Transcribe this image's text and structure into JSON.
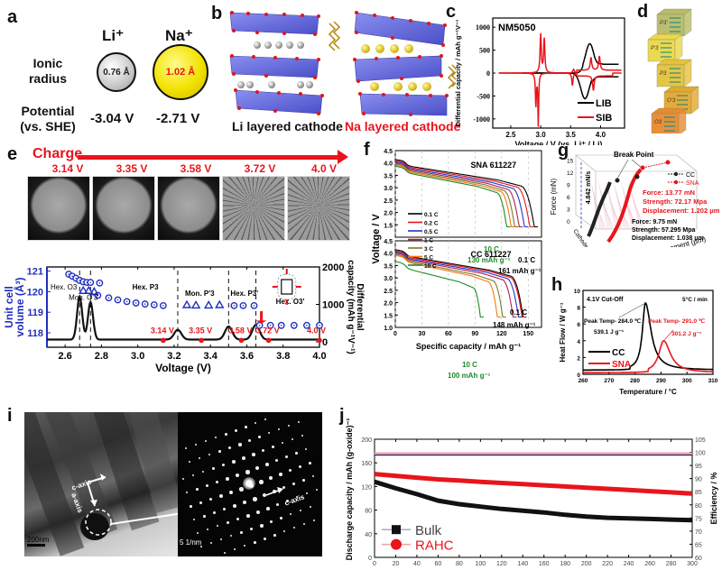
{
  "figure": {
    "panels": [
      "a",
      "b",
      "c",
      "d",
      "e",
      "f",
      "g",
      "h",
      "i",
      "j"
    ]
  },
  "panel_a": {
    "label": "a",
    "ions": [
      {
        "name": "Li⁺",
        "radius": "0.76 Å",
        "potential": "-3.04 V",
        "color": "#cfcfcf"
      },
      {
        "name": "Na⁺",
        "radius": "1.02 Å",
        "potential": "-2.71 V",
        "color": "#f3e300"
      }
    ],
    "row_labels": {
      "radius": [
        "Ionic",
        "radius"
      ],
      "potential": [
        "Potential",
        "(vs. SHE)"
      ]
    }
  },
  "panel_b": {
    "label": "b",
    "li_caption": "Li layered cathode",
    "na_caption": "Na layered cathode"
  },
  "panel_d": {
    "label": "d",
    "phases": [
      "P3'",
      "P'3",
      "P3",
      "O'3",
      "O3"
    ]
  },
  "panel_e": {
    "label": "e",
    "charge_label": "Charge",
    "sem_voltages": [
      "3.14 V",
      "3.35 V",
      "3.58 V",
      "3.72 V",
      "4.0 V"
    ],
    "phase_labels": [
      "Hex. O3",
      "Mon. O'3",
      "Hex. P3",
      "Mon. P'3",
      "Hex. P3'",
      "Hex. O3'"
    ]
  },
  "panel_i": {
    "label": "i",
    "c_axis_label": "c-axis",
    "a_axis_label": "a-axis",
    "scale_left": "200nm",
    "scale_right": "5 1/nm",
    "c_axis_label_right": "c-axis"
  },
  "chart_data": [
    {
      "id": "c",
      "type": "line",
      "title": "NM5050",
      "xlabel": "Voltage / V (vs. Li⁺ / Li)",
      "ylabel": "Differential capacity / mAh g⁻¹V⁻¹",
      "xlim": [
        2.2,
        4.4
      ],
      "ylim": [
        -1200,
        1200
      ],
      "xticks": [
        2.5,
        3.0,
        3.5,
        4.0
      ],
      "yticks": [
        -1000,
        -500,
        0,
        500,
        1000
      ],
      "legend": [
        "LIB",
        "SIB"
      ],
      "legend_position": "bottom-right",
      "series": [
        {
          "name": "LIB",
          "color": "#000000",
          "peaks": [
            {
              "x": 3.82,
              "y": 600
            },
            {
              "x": 3.74,
              "y": -560
            }
          ]
        },
        {
          "name": "SIB",
          "color": "#e8151b",
          "peaks": [
            {
              "x": 3.0,
              "y": 840
            },
            {
              "x": 3.06,
              "y": 740
            },
            {
              "x": 2.92,
              "y": -700
            },
            {
              "x": 2.96,
              "y": -1130
            },
            {
              "x": 3.55,
              "y": 80
            },
            {
              "x": 3.53,
              "y": -270
            },
            {
              "x": 3.84,
              "y": 280
            },
            {
              "x": 3.98,
              "y": 310
            },
            {
              "x": 3.88,
              "y": -320
            }
          ]
        }
      ]
    },
    {
      "id": "e",
      "type": "line",
      "xlabel": "Voltage (V)",
      "ylabel_left": "Unit cell volume (Å³)",
      "ylabel_right": "Differential capacity (mAh g⁻¹V⁻¹)",
      "xlim": [
        2.5,
        4.0
      ],
      "ylim_left": [
        117.3,
        121.2
      ],
      "ylim_right": [
        0,
        2000
      ],
      "xticks": [
        2.6,
        2.8,
        3.0,
        3.2,
        3.4,
        3.6,
        3.8,
        4.0
      ],
      "yticks_left": [
        118,
        119,
        120,
        121
      ],
      "yticks_right": [
        0,
        1000,
        2000
      ],
      "phase_boundaries": [
        2.68,
        2.74,
        3.22,
        3.5,
        3.65
      ],
      "volume_points": [
        {
          "x": 2.62,
          "y": 120.85
        },
        {
          "x": 2.64,
          "y": 120.75
        },
        {
          "x": 2.66,
          "y": 120.65
        },
        {
          "x": 2.68,
          "y": 120.55
        },
        {
          "x": 2.7,
          "y": 120.48
        },
        {
          "x": 2.72,
          "y": 120.45
        },
        {
          "x": 2.74,
          "y": 120.45
        },
        {
          "x": 2.79,
          "y": 120.42
        },
        {
          "x": 2.78,
          "y": 119.82
        },
        {
          "x": 2.84,
          "y": 119.7
        },
        {
          "x": 2.89,
          "y": 119.6
        },
        {
          "x": 2.94,
          "y": 119.52
        },
        {
          "x": 2.99,
          "y": 119.45
        },
        {
          "x": 3.04,
          "y": 119.4
        },
        {
          "x": 3.09,
          "y": 119.36
        },
        {
          "x": 3.14,
          "y": 119.32
        },
        {
          "x": 3.53,
          "y": 119.32
        },
        {
          "x": 3.58,
          "y": 119.32
        },
        {
          "x": 3.64,
          "y": 119.32
        },
        {
          "x": 3.67,
          "y": 118.36
        },
        {
          "x": 3.73,
          "y": 118.36
        },
        {
          "x": 3.79,
          "y": 118.36
        },
        {
          "x": 3.86,
          "y": 118.36
        },
        {
          "x": 3.93,
          "y": 118.36
        },
        {
          "x": 4.0,
          "y": 118.36
        }
      ],
      "volume_triangles": [
        {
          "x": 2.7,
          "y": 120.05
        },
        {
          "x": 2.73,
          "y": 120.05
        },
        {
          "x": 2.76,
          "y": 120.0
        },
        {
          "x": 3.27,
          "y": 119.36
        },
        {
          "x": 3.32,
          "y": 119.34
        },
        {
          "x": 3.39,
          "y": 119.34
        },
        {
          "x": 3.45,
          "y": 119.36
        }
      ],
      "dqdv_peaks": [
        {
          "x": 2.68,
          "y": 1140
        },
        {
          "x": 2.74,
          "y": 1000
        },
        {
          "x": 3.22,
          "y": 260
        },
        {
          "x": 3.5,
          "y": 350
        },
        {
          "x": 3.65,
          "y": 390
        }
      ],
      "marker_points": [
        {
          "x": 3.14,
          "label": "3.14 V"
        },
        {
          "x": 3.35,
          "label": "3.35 V"
        },
        {
          "x": 3.57,
          "label": "3.58 V"
        },
        {
          "x": 3.72,
          "label": "3.72 V"
        },
        {
          "x": 4.0,
          "label": "4.0 V"
        }
      ]
    },
    {
      "id": "f",
      "type": "line",
      "xlabel": "Specific capacity / mAh g⁻¹",
      "ylabel": "Voltage / V",
      "xlim": [
        0,
        165
      ],
      "ylim": [
        1.0,
        4.5
      ],
      "xticks": [
        0,
        30,
        60,
        90,
        120,
        150
      ],
      "yticks": [
        1.0,
        1.5,
        2.0,
        2.5,
        3.0,
        3.5,
        4.0,
        4.5
      ],
      "subplots": [
        {
          "name": "SNA 611227",
          "annotations": [
            "10 C",
            "130 mAh g⁻¹",
            "0.1 C",
            "161 mAh g⁻¹"
          ],
          "end_capacity": {
            "0.1 C": 161,
            "0.2 C": 156,
            "0.5 C": 150,
            "1 C": 144,
            "3 C": 139,
            "5 C": 135,
            "10 C": 130
          }
        },
        {
          "name": "CC 611227",
          "annotations": [
            "0.1 C",
            "148 mAh g⁻¹",
            "10 C",
            "100 mAh g⁻¹"
          ],
          "end_capacity": {
            "0.1 C": 148,
            "0.2 C": 147,
            "0.5 C": 143,
            "1 C": 137,
            "3 C": 125,
            "5 C": 119,
            "10 C": 100
          }
        }
      ],
      "legend": [
        {
          "name": "0.1 C",
          "color": "#000000"
        },
        {
          "name": "0.2 C",
          "color": "#e8151b"
        },
        {
          "name": "0.5 C",
          "color": "#2233cc"
        },
        {
          "name": "1 C",
          "color": "#b0204a"
        },
        {
          "name": "3 C",
          "color": "#7a7a2a"
        },
        {
          "name": "5 C",
          "color": "#f07a10"
        },
        {
          "name": "10 C",
          "color": "#1e8a2a"
        }
      ]
    },
    {
      "id": "g",
      "type": "scatter",
      "ylabel": "Force (mN)",
      "xlabel": "Displacement (μm)",
      "zlabel": "Cathode",
      "yticks": [
        0,
        3,
        6,
        9,
        12,
        15
      ],
      "rate_label": "4.842 mN/s",
      "break_point_label": "Break Point",
      "legend": [
        "CC",
        "SNA"
      ],
      "series": [
        {
          "name": "SNA",
          "color": "#e8151b",
          "force": "13.77 mN",
          "strength": "72.17 Mpa",
          "displacement": "1.202 μm"
        },
        {
          "name": "CC",
          "color": "#222222",
          "force": "9.75 mN",
          "strength": "57.295 Mpa",
          "displacement": "1.038 μm"
        }
      ]
    },
    {
      "id": "h",
      "type": "line",
      "xlabel": "Temperature / °C",
      "ylabel": "Heat Flow / W g⁻¹",
      "xlim": [
        260,
        310
      ],
      "ylim": [
        0,
        10
      ],
      "xticks": [
        260,
        270,
        280,
        290,
        300,
        310
      ],
      "yticks": [
        0,
        2,
        4,
        6,
        8,
        10
      ],
      "annotations": [
        "4.1V Cut-Off",
        "5°C / min",
        "Peak Temp- 284.0 ℃",
        "539.1 J g⁻¹",
        "Peak Temp- 291.0 ℃",
        "301.2 J g⁻¹"
      ],
      "legend": [
        "CC",
        "SNA"
      ],
      "series": [
        {
          "name": "CC",
          "color": "#000000",
          "baseline": 0.5,
          "peak": {
            "x": 284.0,
            "y": 8.5
          }
        },
        {
          "name": "SNA",
          "color": "#e8151b",
          "baseline": 0.2,
          "peak": {
            "x": 291.0,
            "y": 4.0
          }
        }
      ]
    },
    {
      "id": "j",
      "type": "line",
      "xlabel": "Number of cycles",
      "ylabel_left": "Discharge capacity / mAh (g-oxide)⁻¹",
      "ylabel_right": "Efficiency / %",
      "xlim": [
        0,
        300
      ],
      "ylim_left": [
        0,
        200
      ],
      "ylim_right": [
        60,
        105
      ],
      "xticks": [
        0,
        20,
        40,
        60,
        80,
        100,
        120,
        140,
        160,
        180,
        200,
        220,
        240,
        260,
        280,
        300
      ],
      "yticks_left": [
        0,
        40,
        80,
        120,
        160,
        200
      ],
      "yticks_right": [
        60,
        65,
        70,
        75,
        80,
        85,
        90,
        95,
        100,
        105
      ],
      "legend": [
        "Bulk",
        "RAHC"
      ],
      "legend_position": "bottom-left",
      "series": [
        {
          "name": "Bulk",
          "color": "#111111",
          "x": [
            0,
            20,
            40,
            60,
            80,
            100,
            120,
            140,
            160,
            180,
            200,
            220,
            240,
            260,
            280,
            300
          ],
          "y": [
            128,
            117,
            107,
            96,
            90,
            86,
            82,
            79,
            76,
            72,
            69,
            67,
            66,
            65,
            64,
            63
          ]
        },
        {
          "name": "RAHC",
          "color": "#e8151b",
          "x": [
            0,
            20,
            40,
            60,
            80,
            100,
            120,
            140,
            160,
            180,
            200,
            220,
            240,
            260,
            280,
            300
          ],
          "y": [
            141,
            138,
            135,
            132,
            130,
            128,
            126,
            124,
            122,
            120,
            118,
            116,
            114,
            112,
            110,
            108
          ]
        },
        {
          "name": "Bulk efficiency",
          "color": "#1a1a80",
          "axis": "right",
          "x": [
            0,
            300
          ],
          "y": [
            99.2,
            99.2
          ]
        },
        {
          "name": "RAHC efficiency",
          "color": "#f0a0a0",
          "axis": "right",
          "x": [
            0,
            300
          ],
          "y": [
            99.6,
            99.6
          ]
        }
      ]
    }
  ]
}
